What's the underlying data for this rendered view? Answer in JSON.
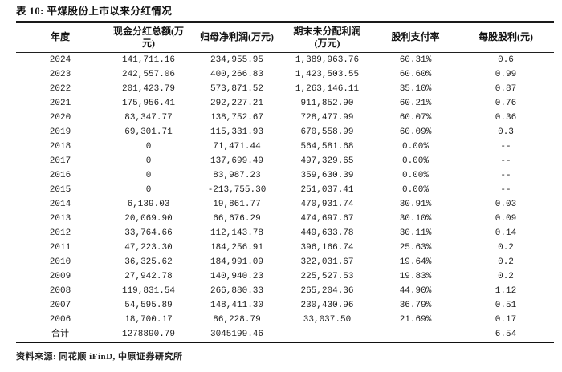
{
  "table": {
    "title": "表 10: 平煤股份上市以来分红情况",
    "headers": [
      "年度",
      "现金分红总额(万\n元)",
      "归母净利润(万元)",
      "期末未分配利润\n(万元)",
      "股利支付率",
      "每股股利(元)"
    ],
    "rows": [
      [
        "2024",
        "141,711.16",
        "234,955.95",
        "1,389,963.76",
        "60.31%",
        "0.6"
      ],
      [
        "2023",
        "242,557.06",
        "400,266.83",
        "1,423,503.55",
        "60.60%",
        "0.99"
      ],
      [
        "2022",
        "201,423.79",
        "573,871.52",
        "1,263,146.11",
        "35.10%",
        "0.87"
      ],
      [
        "2021",
        "175,956.41",
        "292,227.21",
        "911,852.90",
        "60.21%",
        "0.76"
      ],
      [
        "2020",
        "83,347.77",
        "138,752.67",
        "728,477.99",
        "60.07%",
        "0.36"
      ],
      [
        "2019",
        "69,301.71",
        "115,331.93",
        "670,558.99",
        "60.09%",
        "0.3"
      ],
      [
        "2018",
        "0",
        "71,471.44",
        "564,581.68",
        "0.00%",
        "--"
      ],
      [
        "2017",
        "0",
        "137,699.49",
        "497,329.65",
        "0.00%",
        "--"
      ],
      [
        "2016",
        "0",
        "83,987.23",
        "359,630.39",
        "0.00%",
        "--"
      ],
      [
        "2015",
        "0",
        "-213,755.30",
        "251,037.41",
        "0.00%",
        "--"
      ],
      [
        "2014",
        "6,139.03",
        "19,861.77",
        "470,931.74",
        "30.91%",
        "0.03"
      ],
      [
        "2013",
        "20,069.90",
        "66,676.29",
        "474,697.67",
        "30.10%",
        "0.09"
      ],
      [
        "2012",
        "33,764.66",
        "112,143.78",
        "449,633.78",
        "30.11%",
        "0.14"
      ],
      [
        "2011",
        "47,223.30",
        "184,256.91",
        "396,166.74",
        "25.63%",
        "0.2"
      ],
      [
        "2010",
        "36,325.62",
        "184,991.09",
        "322,031.67",
        "19.64%",
        "0.2"
      ],
      [
        "2009",
        "27,942.78",
        "140,940.23",
        "225,527.53",
        "19.83%",
        "0.2"
      ],
      [
        "2008",
        "119,831.54",
        "266,880.33",
        "265,204.36",
        "44.90%",
        "1.12"
      ],
      [
        "2007",
        "54,595.89",
        "148,411.30",
        "230,430.96",
        "36.79%",
        "0.51"
      ],
      [
        "2006",
        "18,700.17",
        "86,228.79",
        "33,037.50",
        "21.69%",
        "0.17"
      ],
      [
        "合计",
        "1278890.79",
        "3045199.46",
        "",
        "",
        "6.54"
      ]
    ]
  },
  "footer": {
    "source": "资料来源: 同花顺 iFinD, 中原证券研究所"
  }
}
